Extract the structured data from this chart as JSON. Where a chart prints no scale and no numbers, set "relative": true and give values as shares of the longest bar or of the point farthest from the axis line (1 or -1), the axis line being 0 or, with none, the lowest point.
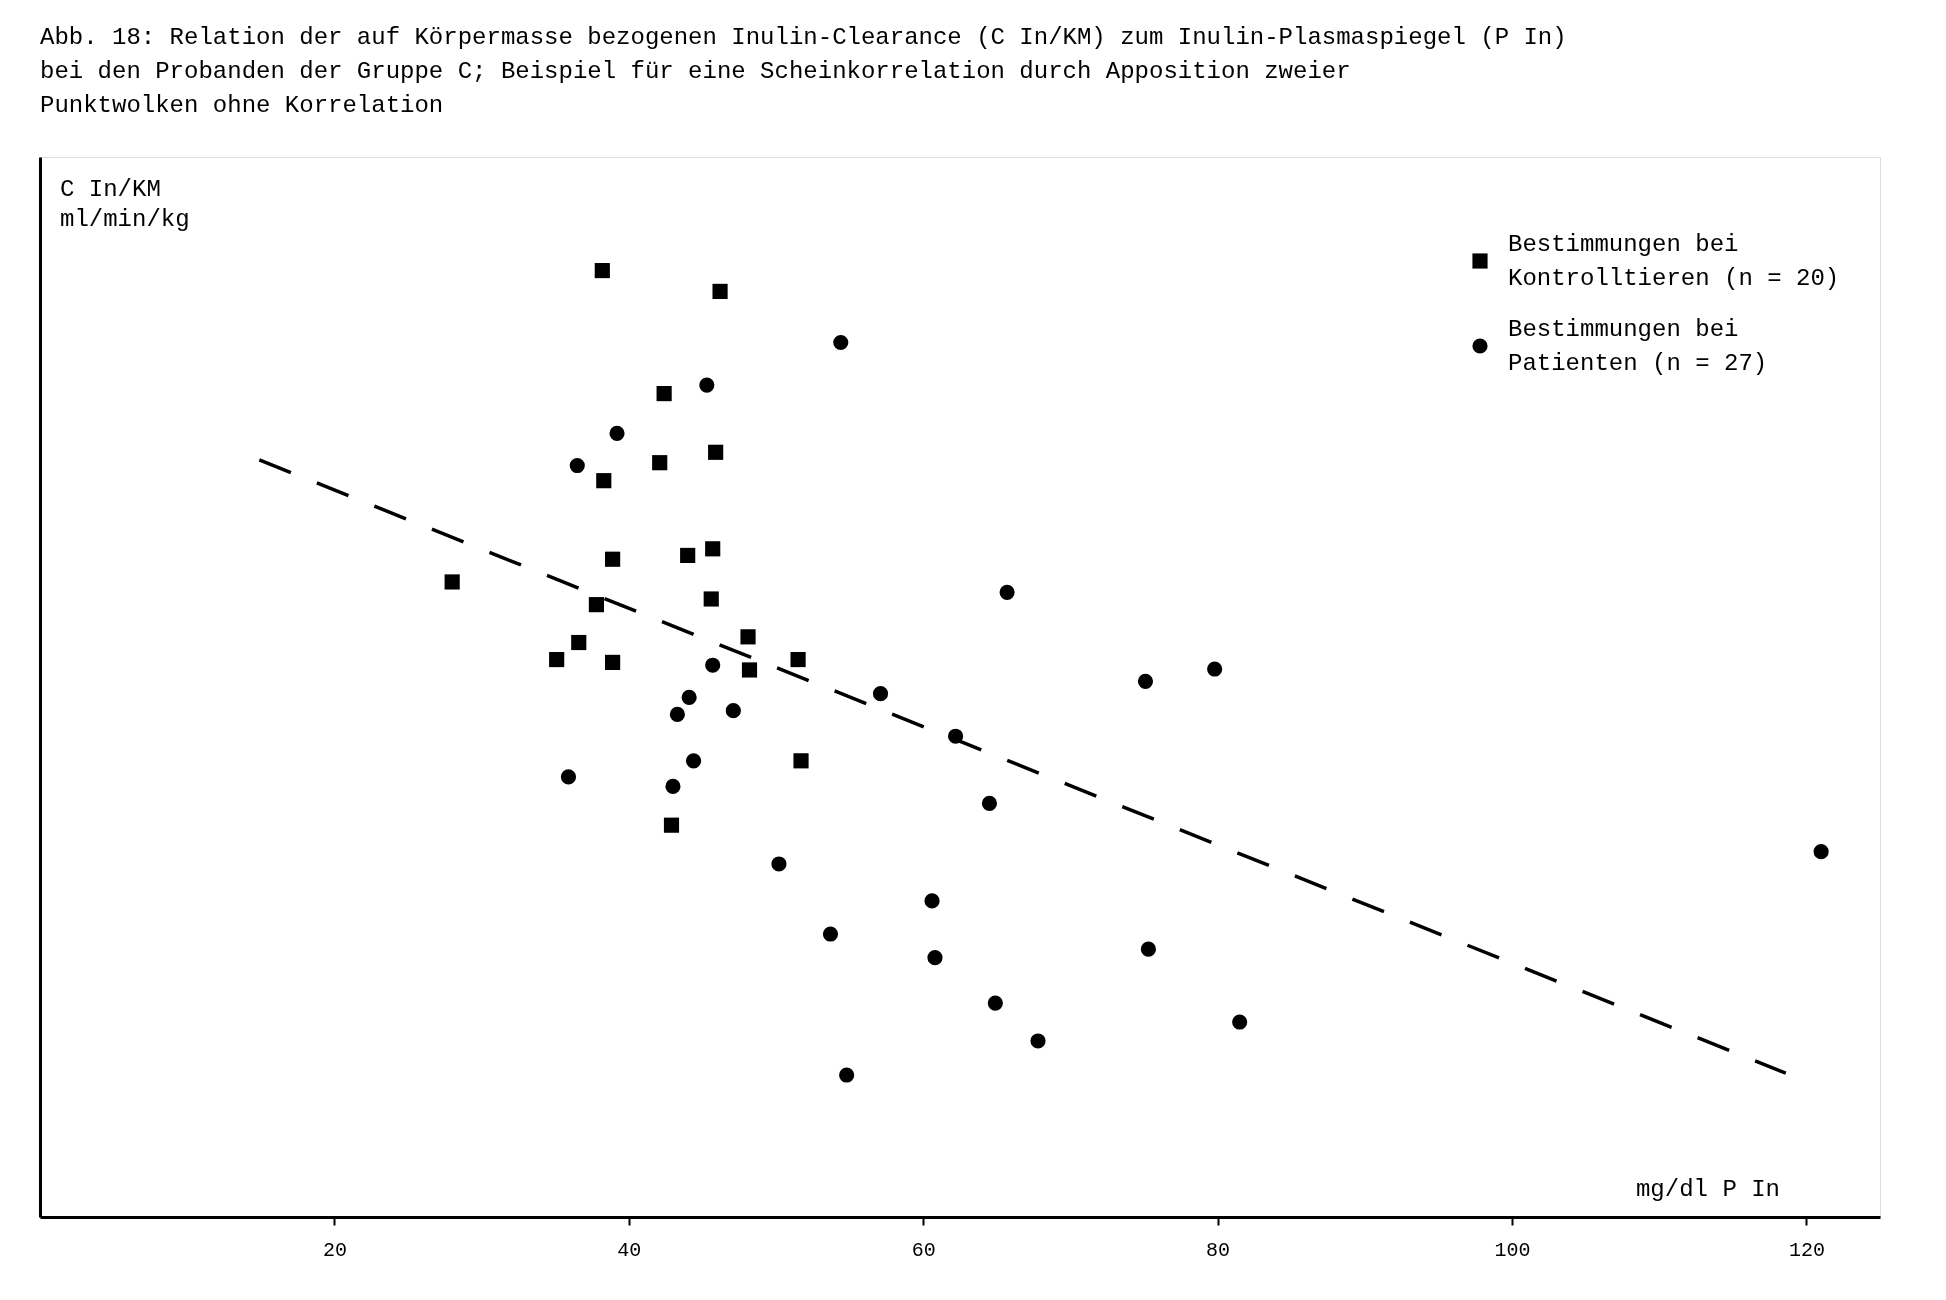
{
  "chart_data": {
    "type": "scatter",
    "title": "Abb. 18: Relation der auf Körpermasse bezogenen Inulin-Clearance (C In/KM) zum Inulin-Plasmaspiegel (P In)\n         bei den Probanden der Gruppe C; Beispiel für eine Scheinkorrelation durch Apposition zweier\n         Punktwolken ohne Korrelation",
    "xlabel": "mg/dl      P In",
    "ylabel": "C In/KM\n\nml/min/kg",
    "relative": true,
    "xlim": [
      0,
      125
    ],
    "xticks": [
      20,
      40,
      60,
      80,
      100,
      120
    ],
    "grid": false,
    "legend": "top right",
    "series": [
      {
        "name": "Bestimmungen bei\nKontrolltieren (n = 20)",
        "color": "#000000",
        "marker": "square",
        "x": [
          38.2,
          46.2,
          42.4,
          45.9,
          42.1,
          38.3,
          45.7,
          44.0,
          38.9,
          28.0,
          45.6,
          37.8,
          48.1,
          36.6,
          35.1,
          38.9,
          48.2,
          51.5,
          51.7,
          42.9
        ],
        "values": [
          1.0,
          0.978,
          0.87,
          0.808,
          0.797,
          0.778,
          0.706,
          0.699,
          0.695,
          0.671,
          0.653,
          0.647,
          0.613,
          0.607,
          0.589,
          0.586,
          0.578,
          0.589,
          0.482,
          0.414
        ]
      },
      {
        "name": "Bestimmungen bei\nPatienten (n = 27)",
        "color": "#000000",
        "marker": "circle",
        "x": [
          54.4,
          45.3,
          39.2,
          36.5,
          65.7,
          45.7,
          79.8,
          75.1,
          57.1,
          44.1,
          47.1,
          43.3,
          62.2,
          44.4,
          35.9,
          43.0,
          64.5,
          50.2,
          121.0,
          60.6,
          53.7,
          75.3,
          60.8,
          64.9,
          81.5,
          67.8,
          54.8
        ],
        "values": [
          0.924,
          0.879,
          0.828,
          0.794,
          0.66,
          0.583,
          0.579,
          0.566,
          0.553,
          0.549,
          0.535,
          0.531,
          0.508,
          0.482,
          0.465,
          0.455,
          0.437,
          0.373,
          0.386,
          0.334,
          0.299,
          0.283,
          0.274,
          0.226,
          0.206,
          0.186,
          0.15
        ]
      },
      {
        "type": "line",
        "color": "#000000",
        "line_style": "dashed",
        "x": [
          14.9,
          118.6
        ],
        "values": [
          0.8,
          0.152
        ]
      }
    ]
  }
}
